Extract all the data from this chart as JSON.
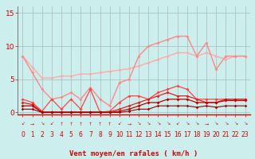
{
  "bg_color": "#cceeed",
  "grid_color": "#aabbbb",
  "xlabel": "Vent moyen/en rafales ( km/h )",
  "xlim": [
    -0.5,
    23.5
  ],
  "ylim": [
    -0.3,
    16
  ],
  "yticks": [
    0,
    5,
    10,
    15
  ],
  "xticks": [
    0,
    1,
    2,
    3,
    4,
    5,
    6,
    7,
    8,
    9,
    10,
    11,
    12,
    13,
    14,
    15,
    16,
    17,
    18,
    19,
    20,
    21,
    22,
    23
  ],
  "lines": [
    {
      "y": [
        8.5,
        6.8,
        5.2,
        5.2,
        5.5,
        5.5,
        5.8,
        5.8,
        6.0,
        6.2,
        6.4,
        6.6,
        7.0,
        7.5,
        8.0,
        8.5,
        9.0,
        9.0,
        8.5,
        9.0,
        8.5,
        8.0,
        8.5,
        8.5
      ],
      "color": "#ffaaaa",
      "lw": 1.0,
      "marker": "D",
      "ms": 2.0
    },
    {
      "y": [
        8.5,
        6.0,
        3.5,
        2.0,
        2.3,
        3.0,
        2.0,
        3.8,
        2.0,
        1.0,
        4.5,
        5.0,
        8.5,
        10.0,
        10.5,
        11.0,
        11.5,
        11.5,
        8.5,
        10.5,
        6.5,
        8.5,
        8.5,
        8.5
      ],
      "color": "#ff8888",
      "lw": 1.0,
      "marker": "D",
      "ms": 2.0
    },
    {
      "y": [
        2.0,
        1.5,
        0.2,
        2.0,
        0.5,
        2.0,
        0.5,
        3.5,
        0.0,
        0.2,
        1.5,
        2.5,
        2.5,
        2.0,
        3.0,
        3.5,
        4.0,
        3.5,
        2.0,
        2.0,
        2.0,
        2.0,
        2.0,
        2.0
      ],
      "color": "#ff4444",
      "lw": 0.9,
      "marker": "D",
      "ms": 2.0
    },
    {
      "y": [
        1.5,
        1.2,
        0.1,
        0.1,
        0.1,
        0.1,
        0.1,
        0.1,
        0.1,
        0.1,
        0.5,
        1.0,
        1.5,
        2.0,
        2.5,
        3.0,
        2.5,
        2.5,
        2.0,
        1.5,
        1.5,
        2.0,
        2.0,
        2.0
      ],
      "color": "#dd2222",
      "lw": 0.9,
      "marker": "D",
      "ms": 2.0
    },
    {
      "y": [
        1.0,
        1.0,
        0.0,
        0.0,
        0.0,
        0.0,
        0.0,
        0.0,
        0.0,
        0.0,
        0.2,
        0.5,
        1.0,
        1.5,
        1.5,
        2.0,
        2.0,
        2.0,
        1.5,
        1.5,
        1.5,
        1.8,
        1.8,
        1.8
      ],
      "color": "#bb0000",
      "lw": 0.9,
      "marker": "D",
      "ms": 2.0
    },
    {
      "y": [
        0.5,
        0.5,
        0.0,
        0.0,
        0.0,
        0.0,
        0.0,
        0.0,
        0.0,
        0.0,
        0.0,
        0.2,
        0.5,
        0.5,
        1.0,
        1.0,
        1.0,
        1.0,
        0.8,
        1.0,
        0.8,
        1.0,
        1.0,
        1.0
      ],
      "color": "#990000",
      "lw": 0.8,
      "marker": "D",
      "ms": 1.8
    }
  ],
  "arrow_chars": [
    "↙",
    "→",
    "↘",
    "↙",
    "↑",
    "↑",
    "↑",
    "↑",
    "↑",
    "↑",
    "↙",
    "→",
    "↘",
    "↘",
    "↘",
    "↘",
    "↙",
    "↘",
    "↘",
    "→",
    "↘",
    "↘",
    "↘",
    "↘"
  ],
  "arrow_color": "#cc2222",
  "tick_color": "#cc0000",
  "xlabel_color": "#cc0000",
  "tick_fontsize": 5.5,
  "ytick_fontsize": 6.5,
  "xlabel_fontsize": 6.5
}
